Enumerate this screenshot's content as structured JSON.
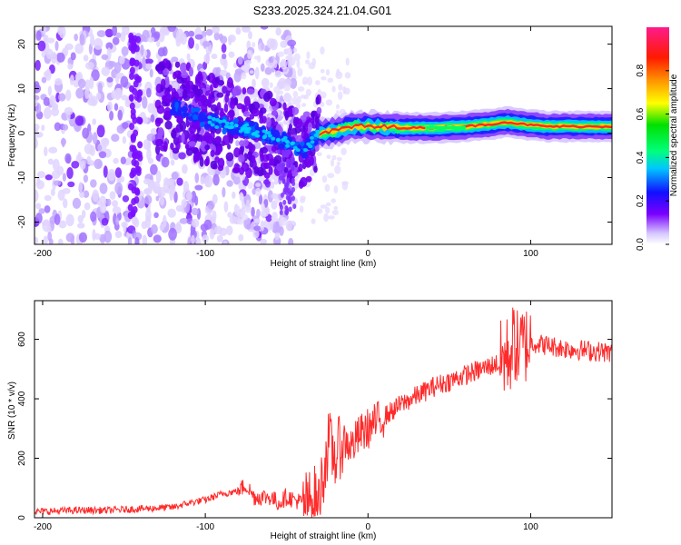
{
  "title": "S233.2025.324.21.04.G01",
  "chart_data": [
    {
      "type": "heatmap",
      "name": "spectrogram",
      "xlabel": "Height of straight line (km)",
      "ylabel": "Frequency (Hz)",
      "xlim": [
        -205,
        150
      ],
      "ylim": [
        -25,
        24
      ],
      "xticks": [
        -200,
        -100,
        0,
        100
      ],
      "xtick_labels": [
        "-200",
        "-100",
        "0",
        "100"
      ],
      "yticks": [
        -20,
        -10,
        0,
        10,
        20
      ],
      "ytick_labels": [
        "-20",
        "-10",
        "0",
        "10",
        "20"
      ],
      "colorbar": {
        "label": "Normalized spectral amplitude",
        "range": [
          0,
          1
        ],
        "ticks": [
          0,
          0.2,
          0.4,
          0.6,
          0.8
        ],
        "tick_labels": [
          "0.0",
          "0.2",
          "0.4",
          "0.6",
          "0.8"
        ]
      },
      "ridge": {
        "x": [
          -120,
          -110,
          -100,
          -90,
          -80,
          -70,
          -60,
          -50,
          -40,
          -30,
          -20,
          -10,
          0,
          20,
          40,
          60,
          75,
          85,
          95,
          110,
          150
        ],
        "freq": [
          6,
          5,
          3,
          2,
          1.5,
          0.5,
          -0.5,
          -2,
          -4,
          0,
          0.5,
          1.5,
          1.5,
          1.2,
          1.2,
          1.5,
          2,
          2.5,
          2,
          1.5,
          1.5
        ]
      }
    },
    {
      "type": "line",
      "name": "snr",
      "xlabel": "Height of straight line (km)",
      "ylabel": "SNR (10 * v/v)",
      "xlim": [
        -205,
        150
      ],
      "ylim": [
        0,
        730
      ],
      "xticks": [
        -200,
        -100,
        0,
        100
      ],
      "xtick_labels": [
        "-200",
        "-100",
        "0",
        "100"
      ],
      "yticks": [
        0,
        200,
        400,
        600
      ],
      "ytick_labels": [
        "0",
        "200",
        "400",
        "600"
      ],
      "series": [
        {
          "name": "SNR",
          "color": "#ff2a2a",
          "x": [
            -205,
            -180,
            -160,
            -140,
            -120,
            -110,
            -100,
            -90,
            -80,
            -75,
            -70,
            -60,
            -55,
            -50,
            -45,
            -40,
            -35,
            -30,
            -28,
            -26,
            -24,
            -22,
            -20,
            -18,
            -15,
            -10,
            -5,
            0,
            5,
            10,
            15,
            20,
            30,
            40,
            50,
            60,
            70,
            80,
            85,
            88,
            90,
            92,
            95,
            100,
            110,
            120,
            130,
            140,
            150
          ],
          "values": [
            20,
            25,
            25,
            30,
            35,
            50,
            60,
            80,
            90,
            110,
            70,
            70,
            50,
            70,
            60,
            50,
            60,
            80,
            130,
            200,
            260,
            220,
            200,
            230,
            260,
            240,
            280,
            300,
            320,
            340,
            360,
            380,
            410,
            440,
            460,
            480,
            500,
            520,
            540,
            560,
            600,
            560,
            580,
            590,
            580,
            570,
            565,
            560,
            555
          ]
        }
      ]
    }
  ]
}
